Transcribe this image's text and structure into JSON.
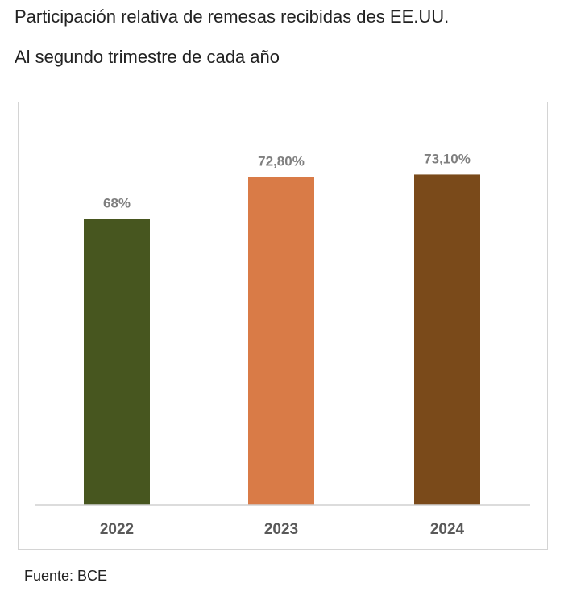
{
  "header": {
    "title": "Participación relativa de remesas recibidas des EE.UU.",
    "subtitle": "Al segundo trimestre de cada año"
  },
  "footer": {
    "source": "Fuente: BCE"
  },
  "chart_data": {
    "type": "bar",
    "title": "Participación relativa de remesas recibidas des EE.UU.",
    "subtitle": "Al segundo trimestre de cada año",
    "xlabel": "",
    "ylabel": "",
    "categories": [
      "2022",
      "2023",
      "2024"
    ],
    "values": [
      68,
      72.8,
      73.1
    ],
    "data_labels": [
      "68%",
      "72,80%",
      "73,10%"
    ],
    "colors": [
      "#47561f",
      "#d97b47",
      "#7a4a1a"
    ],
    "ylim": [
      35,
      75
    ],
    "grid": false,
    "legend": "none"
  }
}
